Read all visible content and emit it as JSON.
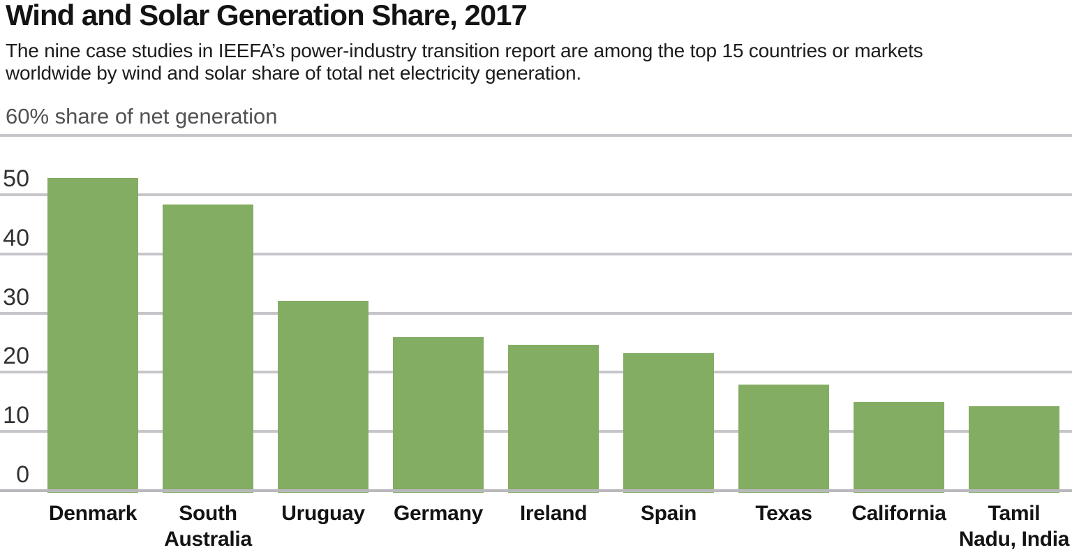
{
  "chart_data": {
    "type": "bar",
    "title": "Wind and Solar Generation Share, 2017",
    "subtitle": "The nine case studies in IEEFA’s power-industry transition report are among the top 15 countries or markets\nworldwide by wind and solar share of total net electricity generation.",
    "unit_label": "60% share of net generation",
    "ylabel": "share of net generation (%)",
    "ylim": [
      0,
      60
    ],
    "yticks": [
      0,
      10,
      20,
      30,
      40,
      50,
      60
    ],
    "grid": true,
    "legend": false,
    "categories": [
      "Denmark",
      "South Australia",
      "Uruguay",
      "Germany",
      "Ireland",
      "Spain",
      "Texas",
      "California",
      "Tamil Nadu, India"
    ],
    "label_lines": [
      [
        "Denmark"
      ],
      [
        "South",
        "Australia"
      ],
      [
        "Uruguay"
      ],
      [
        "Germany"
      ],
      [
        "Ireland"
      ],
      [
        "Spain"
      ],
      [
        "Texas"
      ],
      [
        "California"
      ],
      [
        "Tamil",
        "Nadu, India"
      ]
    ],
    "values": [
      52.8,
      48.4,
      32.1,
      26.0,
      24.6,
      23.2,
      17.9,
      15.0,
      14.3
    ],
    "bar_color": "#83ad63",
    "gridline_color": "#c6c5c9",
    "baseline_color": "#b9b8bd"
  }
}
